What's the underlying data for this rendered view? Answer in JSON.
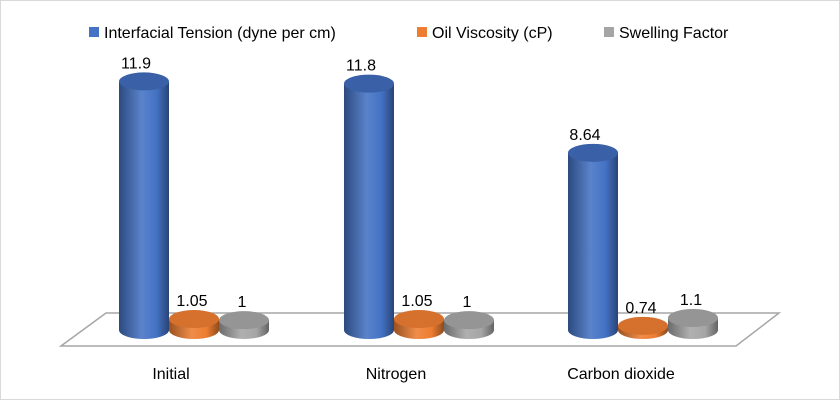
{
  "chart_data": {
    "type": "bar",
    "style": "3d-cylinder",
    "categories": [
      "Initial",
      "Nitrogen",
      "Carbon dioxide"
    ],
    "series": [
      {
        "name": "Interfacial Tension (dyne per cm)",
        "values": [
          11.9,
          11.8,
          8.64
        ],
        "color": "#4472C4"
      },
      {
        "name": "Oil Viscosity (cP)",
        "values": [
          1.05,
          1.05,
          0.74
        ],
        "color": "#ED7D31"
      },
      {
        "name": "Swelling Factor",
        "values": [
          1,
          1,
          1.1
        ],
        "color": "#A5A5A5"
      }
    ],
    "data_labels": [
      [
        "11.9",
        "11.8",
        "8.64"
      ],
      [
        "1.05",
        "1.05",
        "0.74"
      ],
      [
        "1",
        "1",
        "1.1"
      ]
    ],
    "legend_position": "top",
    "grid": false,
    "title": "",
    "xlabel": "",
    "ylabel": ""
  }
}
